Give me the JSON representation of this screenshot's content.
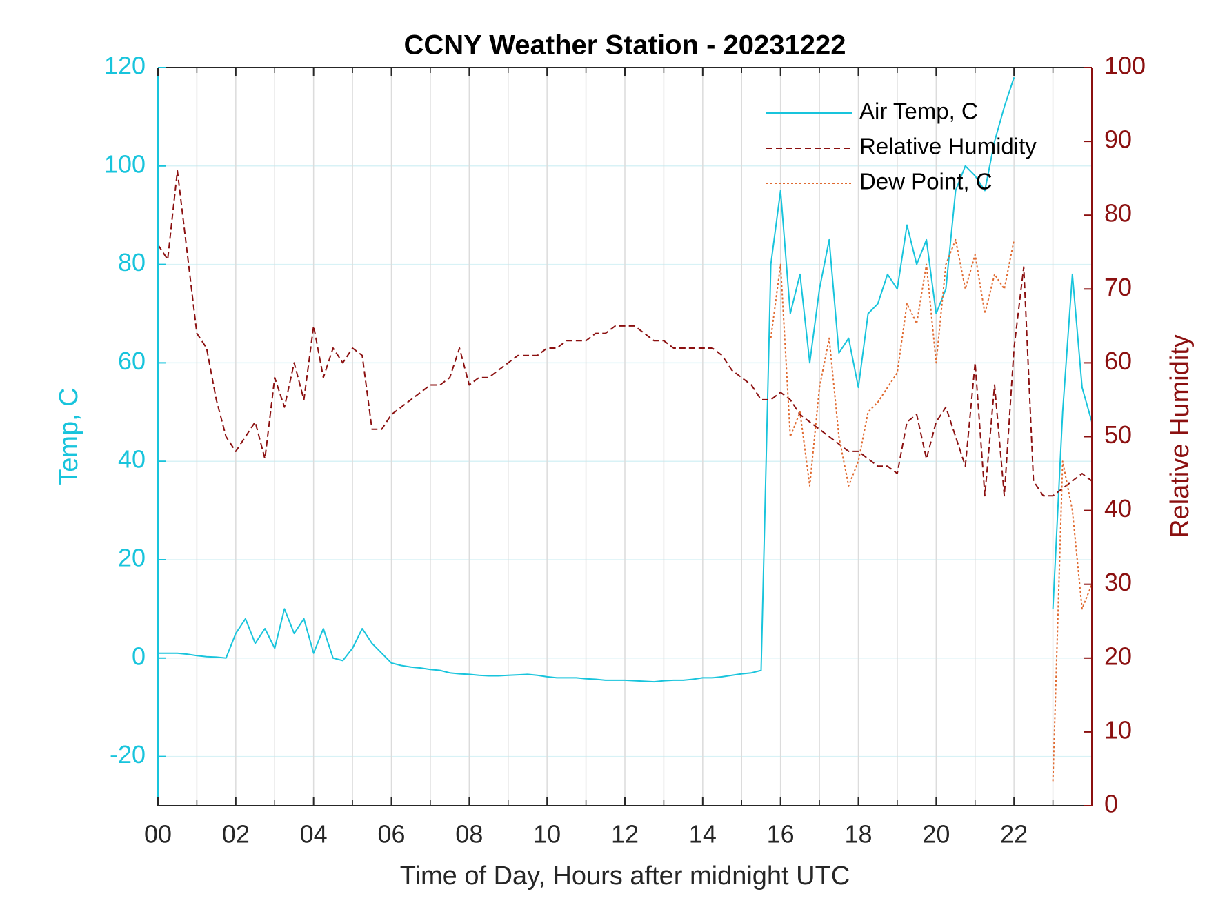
{
  "chart_data": {
    "type": "line",
    "title": "CCNY Weather Station - 20231222",
    "x_label": "Time of Day, Hours after midnight UTC",
    "y_label": "Temp, C",
    "y2_label": "Relative Humidity",
    "xlim": [
      0,
      24
    ],
    "xticks": [
      {
        "value": 0,
        "label": "00"
      },
      {
        "value": 2,
        "label": "02"
      },
      {
        "value": 4,
        "label": "04"
      },
      {
        "value": 6,
        "label": "06"
      },
      {
        "value": 8,
        "label": "08"
      },
      10,
      12,
      14,
      16,
      18,
      20,
      22
    ],
    "ylim": [
      -30,
      120
    ],
    "yticks": [
      -20,
      0,
      20,
      40,
      60,
      80,
      100,
      120
    ],
    "y2lim": [
      0,
      100
    ],
    "y2ticks": [
      0,
      10,
      20,
      30,
      40,
      50,
      60,
      70,
      80,
      90,
      100
    ],
    "grid": true,
    "legend": "upper right",
    "x": [
      0,
      0.25,
      0.5,
      0.75,
      1,
      1.25,
      1.5,
      1.75,
      2,
      2.25,
      2.5,
      2.75,
      3,
      3.25,
      3.5,
      3.75,
      4,
      4.25,
      4.5,
      4.75,
      5,
      5.25,
      5.5,
      5.75,
      6,
      6.25,
      6.5,
      6.75,
      7,
      7.25,
      7.5,
      7.75,
      8,
      8.25,
      8.5,
      8.75,
      9,
      9.25,
      9.5,
      9.75,
      10,
      10.25,
      10.5,
      10.75,
      11,
      11.25,
      11.5,
      11.75,
      12,
      12.25,
      12.5,
      12.75,
      13,
      13.25,
      13.5,
      13.75,
      14,
      14.25,
      14.5,
      14.75,
      15,
      15.25,
      15.5,
      15.75,
      16,
      16.25,
      16.5,
      16.75,
      17,
      17.25,
      17.5,
      17.75,
      18,
      18.25,
      18.5,
      18.75,
      19,
      19.25,
      19.5,
      19.75,
      20,
      20.25,
      20.5,
      20.75,
      21,
      21.25,
      21.5,
      21.75,
      22,
      22.25,
      22.5,
      22.75,
      23,
      23.25,
      23.5,
      23.75,
      24
    ],
    "series": [
      {
        "name": "Air Temp, C",
        "color": "#18c4dc",
        "dash": "solid",
        "axis": "y",
        "values": [
          1,
          1,
          1,
          0.8,
          0.5,
          0.3,
          0.2,
          0,
          5,
          8,
          3,
          6,
          2,
          10,
          5,
          8,
          1,
          6,
          0,
          -0.5,
          2,
          6,
          3,
          1,
          -1,
          -1.5,
          -1.8,
          -2,
          -2.3,
          -2.5,
          -3,
          -3.2,
          -3.3,
          -3.5,
          -3.6,
          -3.6,
          -3.5,
          -3.4,
          -3.3,
          -3.5,
          -3.8,
          -4,
          -4,
          -4,
          -4.2,
          -4.3,
          -4.5,
          -4.5,
          -4.5,
          -4.6,
          -4.7,
          -4.8,
          -4.6,
          -4.5,
          -4.5,
          -4.3,
          -4,
          -4,
          -3.8,
          -3.5,
          -3.2,
          -3,
          -2.5,
          80,
          95,
          70,
          78,
          60,
          75,
          85,
          62,
          65,
          55,
          70,
          72,
          78,
          75,
          88,
          80,
          85,
          70,
          75,
          95,
          100,
          98,
          95,
          105,
          112,
          118,
          null,
          null,
          null,
          10,
          50,
          78,
          55,
          48
        ]
      },
      {
        "name": "Relative Humidity",
        "color": "#8b1010",
        "dash": "dashed",
        "axis": "y2",
        "values": [
          76,
          74,
          86,
          75,
          64,
          62,
          55,
          50,
          48,
          50,
          52,
          47,
          58,
          54,
          60,
          55,
          65,
          58,
          62,
          60,
          62,
          61,
          51,
          51,
          53,
          54,
          55,
          56,
          57,
          57,
          58,
          62,
          57,
          58,
          58,
          59,
          60,
          61,
          61,
          61,
          62,
          62,
          63,
          63,
          63,
          64,
          64,
          65,
          65,
          65,
          64,
          63,
          63,
          62,
          62,
          62,
          62,
          62,
          61,
          59,
          58,
          57,
          55,
          55,
          56,
          55,
          53,
          52,
          51,
          50,
          49,
          48,
          48,
          47,
          46,
          46,
          45,
          52,
          53,
          47,
          52,
          54,
          50,
          46,
          60,
          42,
          57,
          42,
          62,
          73,
          44,
          42,
          42,
          43,
          44,
          45,
          44
        ]
      },
      {
        "name": "Dew Point, C",
        "color": "#e06a30",
        "dash": "dotted",
        "axis": "y",
        "values": [
          null,
          null,
          null,
          null,
          null,
          null,
          null,
          null,
          null,
          null,
          null,
          null,
          null,
          null,
          null,
          null,
          null,
          null,
          null,
          null,
          null,
          null,
          null,
          null,
          null,
          null,
          null,
          null,
          null,
          null,
          null,
          null,
          null,
          null,
          null,
          null,
          null,
          null,
          null,
          null,
          null,
          null,
          null,
          null,
          null,
          null,
          null,
          null,
          null,
          null,
          null,
          null,
          null,
          null,
          null,
          null,
          null,
          null,
          null,
          null,
          null,
          null,
          null,
          65,
          80,
          45,
          50,
          35,
          55,
          65,
          45,
          35,
          40,
          50,
          52,
          55,
          58,
          72,
          68,
          80,
          60,
          80,
          85,
          75,
          82,
          70,
          78,
          75,
          85,
          null,
          null,
          null,
          -25,
          40,
          30,
          10,
          15
        ]
      }
    ]
  }
}
